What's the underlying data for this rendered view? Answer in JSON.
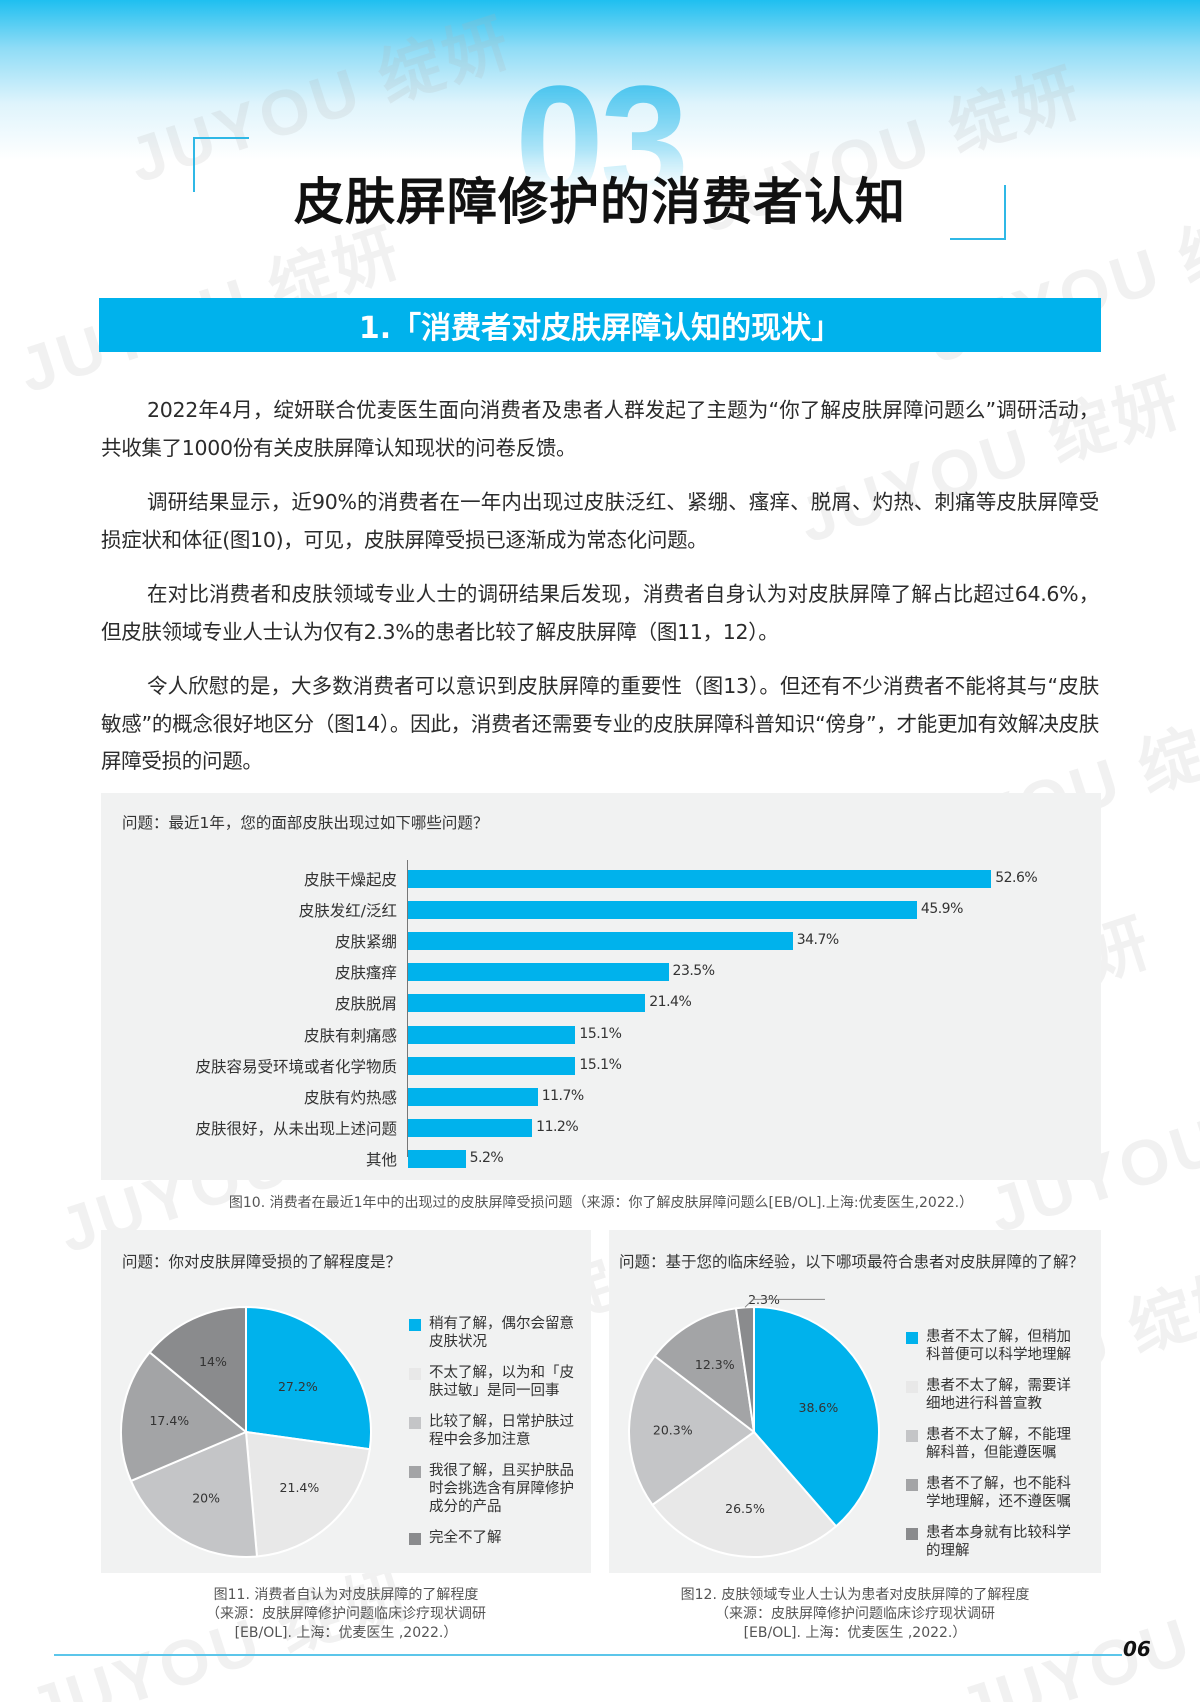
{
  "header": {
    "chapter_number": "03",
    "title": "皮肤屏障修护的消费者认知",
    "section_title": "1.「消费者对皮肤屏障认知的现状」",
    "watermark": "JUYOU 绽妍"
  },
  "paragraphs": [
    "2022年4月，绽妍联合优麦医生面向消费者及患者人群发起了主题为“你了解皮肤屏障问题么”调研活动，共收集了1000份有关皮肤屏障认知现状的问卷反馈。",
    "调研结果显示，近90%的消费者在一年内出现过皮肤泛红、紧绷、瘙痒、脱屑、灼热、刺痛等皮肤屏障受损症状和体征(图10)，可见，皮肤屏障受损已逐渐成为常态化问题。",
    "在对比消费者和皮肤领域专业人士的调研结果后发现，消费者自身认为对皮肤屏障了解占比超过64.6%，但皮肤领域专业人士认为仅有2.3%的患者比较了解皮肤屏障（图11，12）。",
    "令人欣慰的是，大多数消费者可以意识到皮肤屏障的重要性（图13）。但还有不少消费者不能将其与“皮肤敏感”的概念很好地区分（图14）。因此，消费者还需要专业的皮肤屏障科普知识“傍身”，才能更加有效解决皮肤屏障受损的问题。"
  ],
  "figure10": {
    "question": "问题：最近1年，您的面部皮肤出现过如下哪些问题？",
    "caption": "图10. 消费者在最近1年中的出现过的皮肤屏障受损问题（来源：你了解皮肤屏障问题么[EB/OL].上海:优麦医生,2022.）",
    "bars": [
      {
        "label": "皮肤干燥起皮",
        "value": 52.6,
        "value_label": "52.6%"
      },
      {
        "label": "皮肤发红/泛红",
        "value": 45.9,
        "value_label": "45.9%"
      },
      {
        "label": "皮肤紧绷",
        "value": 34.7,
        "value_label": "34.7%"
      },
      {
        "label": "皮肤瘙痒",
        "value": 23.5,
        "value_label": "23.5%"
      },
      {
        "label": "皮肤脱屑",
        "value": 21.4,
        "value_label": "21.4%"
      },
      {
        "label": "皮肤有刺痛感",
        "value": 15.1,
        "value_label": "15.1%"
      },
      {
        "label": "皮肤容易受环境或者化学物质",
        "value": 15.1,
        "value_label": "15.1%"
      },
      {
        "label": "皮肤有灼热感",
        "value": 11.7,
        "value_label": "11.7%"
      },
      {
        "label": "皮肤很好，从未出现上述问题",
        "value": 11.2,
        "value_label": "11.2%"
      },
      {
        "label": "其他",
        "value": 5.2,
        "value_label": "5.2%"
      }
    ]
  },
  "figure11": {
    "question": "问题：你对皮肤屏障受损的了解程度是？",
    "caption_lines": [
      "图11. 消费者自认为对皮肤屏障的了解程度",
      "（来源：皮肤屏障修护问题临床诊疗现状调研",
      "[EB/OL]. 上海：优麦医生 ,2022.）"
    ],
    "slices": [
      {
        "label": "稍有了解，偶尔会留意皮肤状况",
        "value": 27.2,
        "value_label": "27.2%",
        "color": "#00b2ec"
      },
      {
        "label": "不太了解，以为和「皮肤过敏」是同一回事",
        "value": 21.4,
        "value_label": "21.4%",
        "color": "#e8e8e8"
      },
      {
        "label": "比较了解，日常护肤过程中会多加注意",
        "value": 20,
        "value_label": "20%",
        "color": "#c4c5c7"
      },
      {
        "label": "我很了解，且买护肤品时会挑选含有屏障修护成分的产品",
        "value": 17.4,
        "value_label": "17.4%",
        "color": "#a3a4a6"
      },
      {
        "label": "完全不了解",
        "value": 14,
        "value_label": "14%",
        "color": "#8a8b8d"
      }
    ]
  },
  "figure12": {
    "question": "问题：基于您的临床经验，以下哪项最符合患者对皮肤屏障的了解？",
    "caption_lines": [
      "图12. 皮肤领域专业人士认为患者对皮肤屏障的了解程度",
      "（来源：皮肤屏障修护问题临床诊疗现状调研",
      "[EB/OL]. 上海：优麦医生 ,2022.）"
    ],
    "slices": [
      {
        "label": "患者不太了解，但稍加科普便可以科学地理解",
        "value": 38.6,
        "value_label": "38.6%",
        "color": "#00b2ec"
      },
      {
        "label": "患者不太了解，需要详细地进行科普宣教",
        "value": 26.5,
        "value_label": "26.5%",
        "color": "#e8e8e8"
      },
      {
        "label": "患者不太了解，不能理解科普，但能遵医嘱",
        "value": 20.3,
        "value_label": "20.3%",
        "color": "#c4c5c7"
      },
      {
        "label": "患者不了解，也不能科学地理解，还不遵医嘱",
        "value": 12.3,
        "value_label": "12.3%",
        "color": "#a3a4a6"
      },
      {
        "label": "患者本身就有比较科学的理解",
        "value": 2.3,
        "value_label": "2.3%",
        "color": "#8a8b8d"
      }
    ]
  },
  "footer": {
    "page_number": "06"
  },
  "colors": {
    "accent": "#00b2ec",
    "bracket": "#2fb8e6",
    "panel_bg": "#f1f2f2"
  },
  "chart_data": [
    {
      "type": "bar",
      "orientation": "horizontal",
      "title": "问题：最近1年，您的面部皮肤出现过如下哪些问题？",
      "categories": [
        "皮肤干燥起皮",
        "皮肤发红/泛红",
        "皮肤紧绷",
        "皮肤瘙痒",
        "皮肤脱屑",
        "皮肤有刺痛感",
        "皮肤容易受环境或者化学物质",
        "皮肤有灼热感",
        "皮肤很好，从未出现上述问题",
        "其他"
      ],
      "values": [
        52.6,
        45.9,
        34.7,
        23.5,
        21.4,
        15.1,
        15.1,
        11.7,
        11.2,
        5.2
      ],
      "unit": "%",
      "xlabel": "",
      "ylabel": "",
      "grid": false,
      "caption": "图10. 消费者在最近1年中的出现过的皮肤屏障受损问题"
    },
    {
      "type": "pie",
      "title": "问题：你对皮肤屏障受损的了解程度是？",
      "categories": [
        "稍有了解，偶尔会留意皮肤状况",
        "不太了解，以为和「皮肤过敏」是同一回事",
        "比较了解，日常护肤过程中会多加注意",
        "我很了解，且买护肤品时会挑选含有屏障修护成分的产品",
        "完全不了解"
      ],
      "values": [
        27.2,
        21.4,
        20,
        17.4,
        14
      ],
      "unit": "%",
      "legend_position": "right",
      "caption": "图11. 消费者自认为对皮肤屏障的了解程度"
    },
    {
      "type": "pie",
      "title": "问题：基于您的临床经验，以下哪项最符合患者对皮肤屏障的了解？",
      "categories": [
        "患者不太了解，但稍加科普便可以科学地理解",
        "患者不太了解，需要详细地进行科普宣教",
        "患者不太了解，不能理解科普，但能遵医嘱",
        "患者不了解，也不能科学地理解，还不遵医嘱",
        "患者本身就有比较科学的理解"
      ],
      "values": [
        38.6,
        26.5,
        20.3,
        12.3,
        2.3
      ],
      "unit": "%",
      "legend_position": "right",
      "caption": "图12. 皮肤领域专业人士认为患者对皮肤屏障的了解程度"
    }
  ]
}
